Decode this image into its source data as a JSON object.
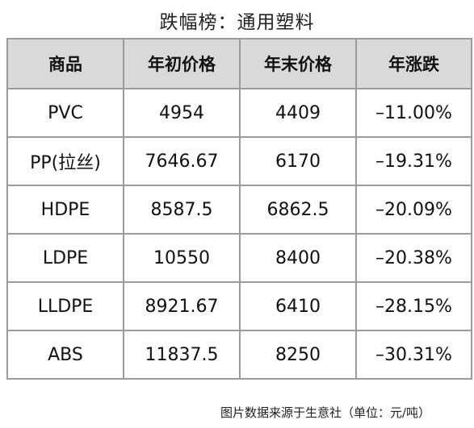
{
  "chart_data": {
    "type": "table",
    "title": "跌幅榜：通用塑料",
    "columns": [
      "商品",
      "年初价格",
      "年末价格",
      "年涨跌"
    ],
    "rows": [
      [
        "PVC",
        "4954",
        "4409",
        "–11.00%"
      ],
      [
        "PP(拉丝)",
        "7646.67",
        "6170",
        "–19.31%"
      ],
      [
        "HDPE",
        "8587.5",
        "6862.5",
        "–20.09%"
      ],
      [
        "LDPE",
        "10550",
        "8400",
        "–20.38%"
      ],
      [
        "LLDPE",
        "8921.67",
        "6410",
        "–28.15%"
      ],
      [
        "ABS",
        "11837.5",
        "8250",
        "–30.31%"
      ]
    ],
    "source_note": "图片数据来源于生意社（单位：元/吨）"
  },
  "colors": {
    "header_background": "#d9d9d9",
    "border": "#9a9a9a",
    "text": "#111111"
  }
}
